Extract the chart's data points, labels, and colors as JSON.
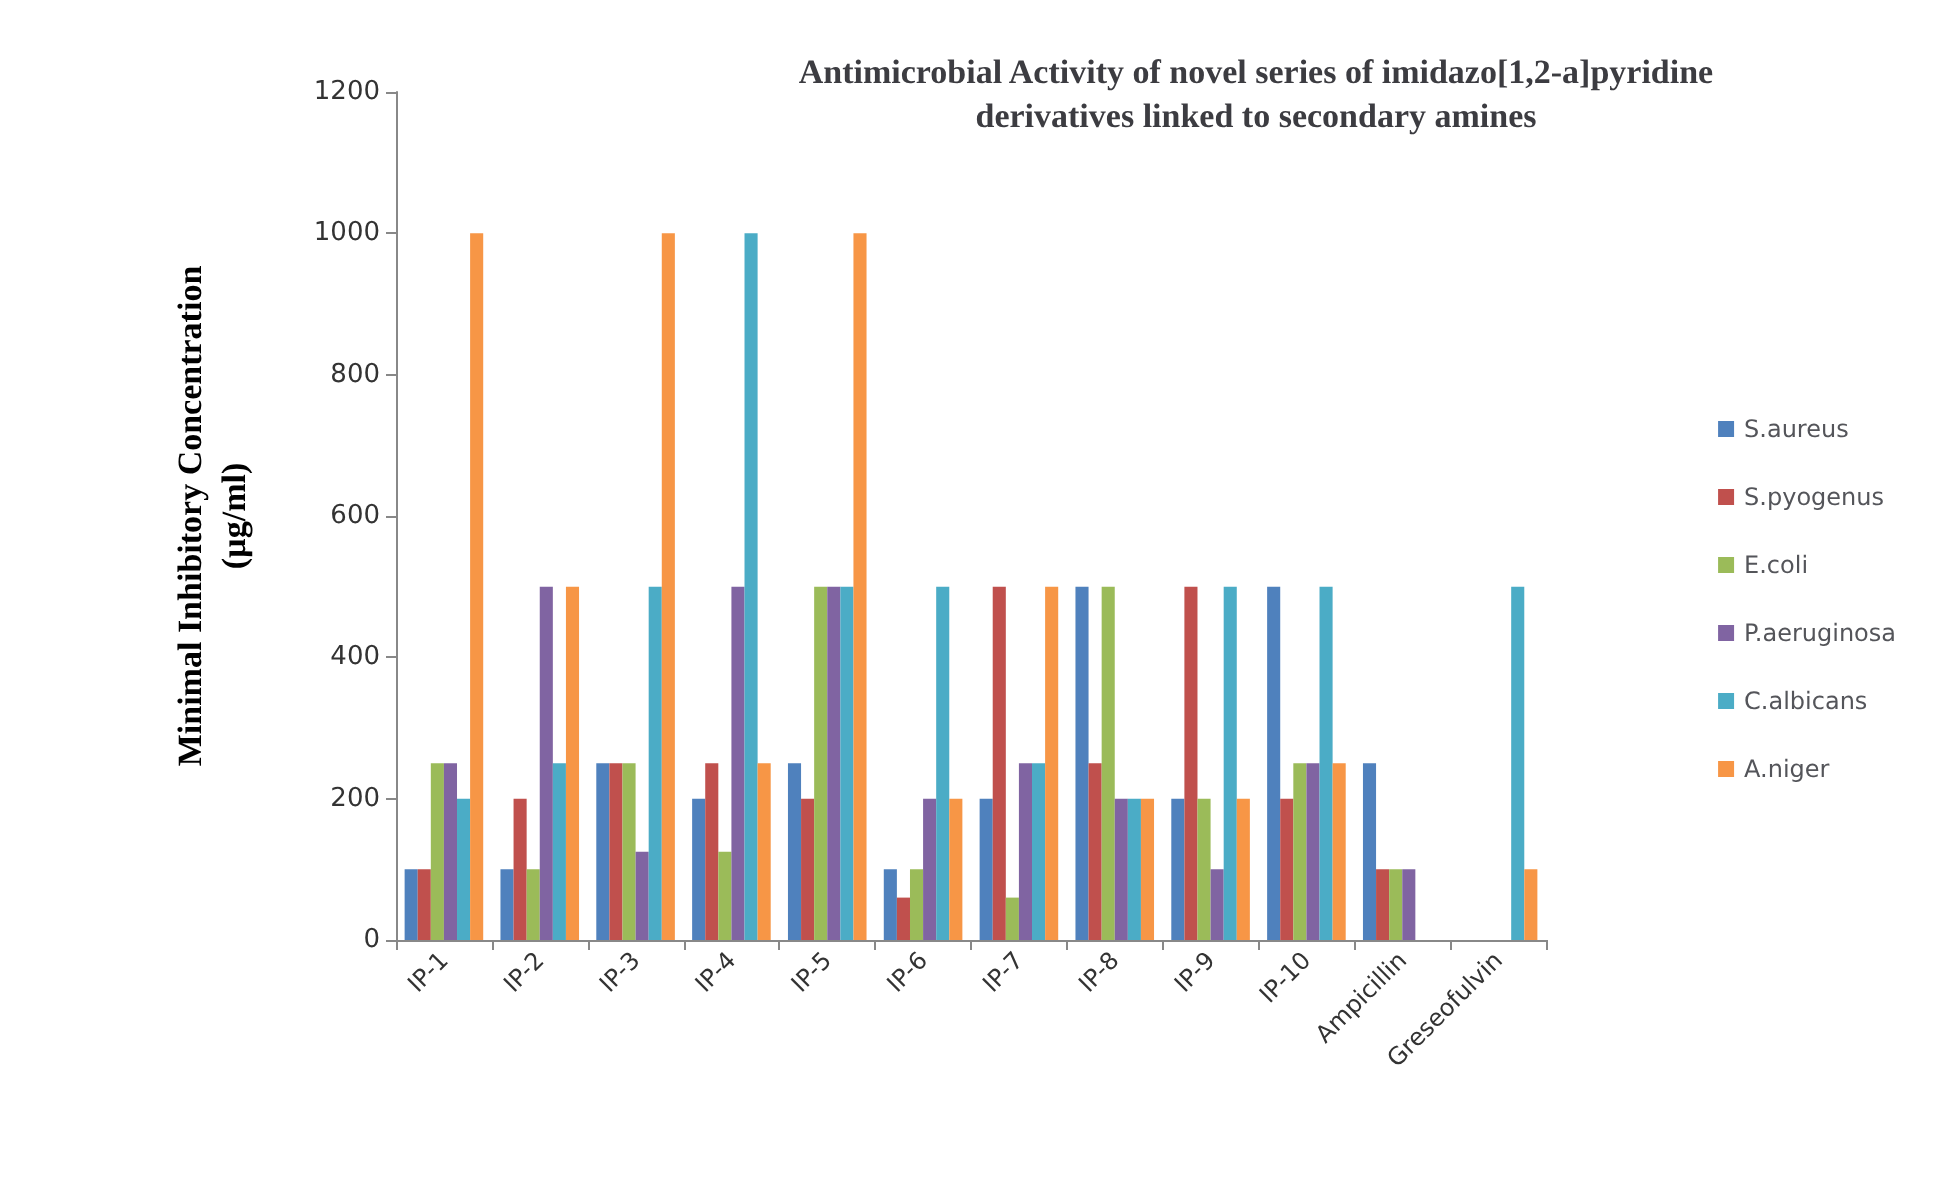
{
  "chart_data": {
    "type": "bar",
    "title": "Antimicrobial Activity of novel series of imidazo[1,2-a]pyridine\nderivatives linked to secondary amines",
    "ylabel": "Minimal Inhibitory Concentration\n(µg/ml)",
    "categories": [
      "IP-1",
      "IP-2",
      "IP-3",
      "IP-4",
      "IP-5",
      "IP-6",
      "IP-7",
      "IP-8",
      "IP-9",
      "IP-10",
      "Ampicillin",
      "Greseofulvin"
    ],
    "series": [
      {
        "name": "S.aureus",
        "color": "#4f81bd",
        "values": [
          100,
          100,
          250,
          200,
          250,
          100,
          200,
          500,
          200,
          500,
          250,
          null
        ]
      },
      {
        "name": "S.pyogenus",
        "color": "#c0504d",
        "values": [
          100,
          200,
          250,
          250,
          200,
          60,
          500,
          250,
          500,
          200,
          100,
          null
        ]
      },
      {
        "name": "E.coli",
        "color": "#9bbb59",
        "values": [
          250,
          100,
          250,
          125,
          500,
          100,
          60,
          500,
          200,
          250,
          100,
          null
        ]
      },
      {
        "name": "P.aeruginosa",
        "color": "#8064a2",
        "values": [
          250,
          500,
          125,
          500,
          500,
          200,
          250,
          200,
          100,
          250,
          100,
          null
        ]
      },
      {
        "name": "C.albicans",
        "color": "#4bacc6",
        "values": [
          200,
          250,
          500,
          1000,
          500,
          500,
          250,
          200,
          500,
          500,
          null,
          500
        ]
      },
      {
        "name": "A.niger",
        "color": "#f79646",
        "values": [
          1000,
          500,
          1000,
          250,
          1000,
          200,
          500,
          200,
          200,
          250,
          null,
          100
        ]
      }
    ],
    "ylim": [
      0,
      1200
    ],
    "yticks": [
      0,
      200,
      400,
      600,
      800,
      1000,
      1200
    ],
    "grid": false,
    "legend": "right"
  }
}
